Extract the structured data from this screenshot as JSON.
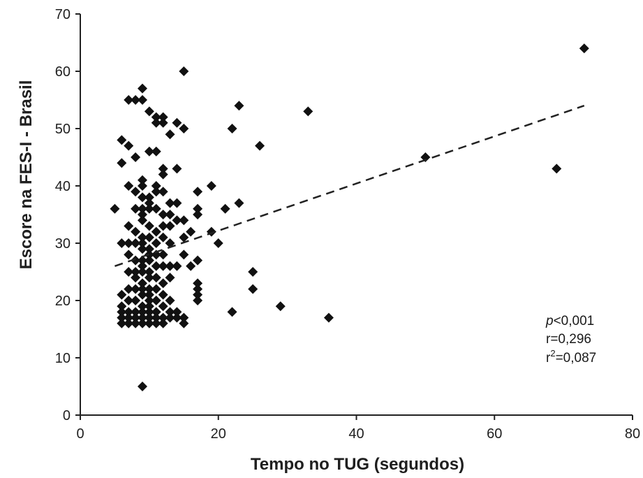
{
  "chart_data": {
    "type": "scatter",
    "title": "",
    "xlabel": "Tempo no TUG (segundos)",
    "ylabel": "Escore na FES-I - Brasil",
    "xlim": [
      0,
      80
    ],
    "ylim": [
      0,
      70
    ],
    "xticks": [
      "0",
      "20",
      "40",
      "60",
      "80"
    ],
    "yticks": [
      "0",
      "10",
      "20",
      "30",
      "40",
      "50",
      "60",
      "70"
    ],
    "grid": false,
    "legend": "none",
    "marker": "diamond",
    "marker_color": "#111111",
    "trendline": {
      "style": "dashed",
      "x": [
        5,
        73
      ],
      "y": [
        26,
        54
      ]
    },
    "annotations": {
      "p_symbol": "p",
      "p_value": "<0,001",
      "r": "r=0,296",
      "r2_prefix": "r",
      "r2_sup": "2",
      "r2_value": "=0,087"
    },
    "points": [
      [
        5,
        36
      ],
      [
        6,
        48
      ],
      [
        6,
        44
      ],
      [
        6,
        30
      ],
      [
        6,
        21
      ],
      [
        6,
        19
      ],
      [
        6,
        18
      ],
      [
        6,
        17
      ],
      [
        6,
        16
      ],
      [
        7,
        55
      ],
      [
        7,
        47
      ],
      [
        7,
        40
      ],
      [
        7,
        33
      ],
      [
        7,
        30
      ],
      [
        7,
        28
      ],
      [
        7,
        25
      ],
      [
        7,
        22
      ],
      [
        7,
        20
      ],
      [
        7,
        18
      ],
      [
        7,
        17
      ],
      [
        7,
        16
      ],
      [
        8,
        55
      ],
      [
        8,
        45
      ],
      [
        8,
        39
      ],
      [
        8,
        36
      ],
      [
        8,
        32
      ],
      [
        8,
        30
      ],
      [
        8,
        27
      ],
      [
        8,
        25
      ],
      [
        8,
        24
      ],
      [
        8,
        22
      ],
      [
        8,
        20
      ],
      [
        8,
        18
      ],
      [
        8,
        17
      ],
      [
        8,
        16
      ],
      [
        9,
        57
      ],
      [
        9,
        55
      ],
      [
        9,
        41
      ],
      [
        9,
        40
      ],
      [
        9,
        38
      ],
      [
        9,
        36
      ],
      [
        9,
        35
      ],
      [
        9,
        34
      ],
      [
        9,
        31
      ],
      [
        9,
        30
      ],
      [
        9,
        29
      ],
      [
        9,
        27
      ],
      [
        9,
        26
      ],
      [
        9,
        25
      ],
      [
        9,
        23
      ],
      [
        9,
        22
      ],
      [
        9,
        21
      ],
      [
        9,
        19
      ],
      [
        9,
        18
      ],
      [
        9,
        17
      ],
      [
        9,
        16
      ],
      [
        9,
        5
      ],
      [
        10,
        53
      ],
      [
        10,
        46
      ],
      [
        10,
        38
      ],
      [
        10,
        37
      ],
      [
        10,
        36
      ],
      [
        10,
        33
      ],
      [
        10,
        31
      ],
      [
        10,
        29
      ],
      [
        10,
        28
      ],
      [
        10,
        27
      ],
      [
        10,
        25
      ],
      [
        10,
        24
      ],
      [
        10,
        22
      ],
      [
        10,
        21
      ],
      [
        10,
        20
      ],
      [
        10,
        19
      ],
      [
        10,
        18
      ],
      [
        10,
        17
      ],
      [
        10,
        16
      ],
      [
        11,
        52
      ],
      [
        11,
        51
      ],
      [
        11,
        46
      ],
      [
        11,
        40
      ],
      [
        11,
        39
      ],
      [
        11,
        36
      ],
      [
        11,
        32
      ],
      [
        11,
        30
      ],
      [
        11,
        28
      ],
      [
        11,
        26
      ],
      [
        11,
        24
      ],
      [
        11,
        22
      ],
      [
        11,
        20
      ],
      [
        11,
        18
      ],
      [
        11,
        17
      ],
      [
        11,
        16
      ],
      [
        12,
        52
      ],
      [
        12,
        51
      ],
      [
        12,
        43
      ],
      [
        12,
        42
      ],
      [
        12,
        39
      ],
      [
        12,
        35
      ],
      [
        12,
        33
      ],
      [
        12,
        31
      ],
      [
        12,
        28
      ],
      [
        12,
        26
      ],
      [
        12,
        23
      ],
      [
        12,
        21
      ],
      [
        12,
        19
      ],
      [
        12,
        17
      ],
      [
        12,
        16
      ],
      [
        13,
        49
      ],
      [
        13,
        37
      ],
      [
        13,
        35
      ],
      [
        13,
        33
      ],
      [
        13,
        30
      ],
      [
        13,
        26
      ],
      [
        13,
        24
      ],
      [
        13,
        20
      ],
      [
        13,
        18
      ],
      [
        13,
        17
      ],
      [
        14,
        51
      ],
      [
        14,
        43
      ],
      [
        14,
        37
      ],
      [
        14,
        34
      ],
      [
        14,
        26
      ],
      [
        14,
        18
      ],
      [
        14,
        17
      ],
      [
        15,
        60
      ],
      [
        15,
        50
      ],
      [
        15,
        34
      ],
      [
        15,
        31
      ],
      [
        15,
        28
      ],
      [
        15,
        17
      ],
      [
        15,
        16
      ],
      [
        16,
        32
      ],
      [
        16,
        26
      ],
      [
        17,
        39
      ],
      [
        17,
        36
      ],
      [
        17,
        35
      ],
      [
        17,
        27
      ],
      [
        17,
        23
      ],
      [
        17,
        22
      ],
      [
        17,
        21
      ],
      [
        17,
        20
      ],
      [
        19,
        40
      ],
      [
        19,
        32
      ],
      [
        20,
        30
      ],
      [
        21,
        36
      ],
      [
        22,
        50
      ],
      [
        22,
        18
      ],
      [
        23,
        54
      ],
      [
        23,
        37
      ],
      [
        25,
        25
      ],
      [
        25,
        22
      ],
      [
        26,
        47
      ],
      [
        29,
        19
      ],
      [
        33,
        53
      ],
      [
        36,
        17
      ],
      [
        50,
        45
      ],
      [
        69,
        43
      ],
      [
        73,
        64
      ]
    ]
  }
}
